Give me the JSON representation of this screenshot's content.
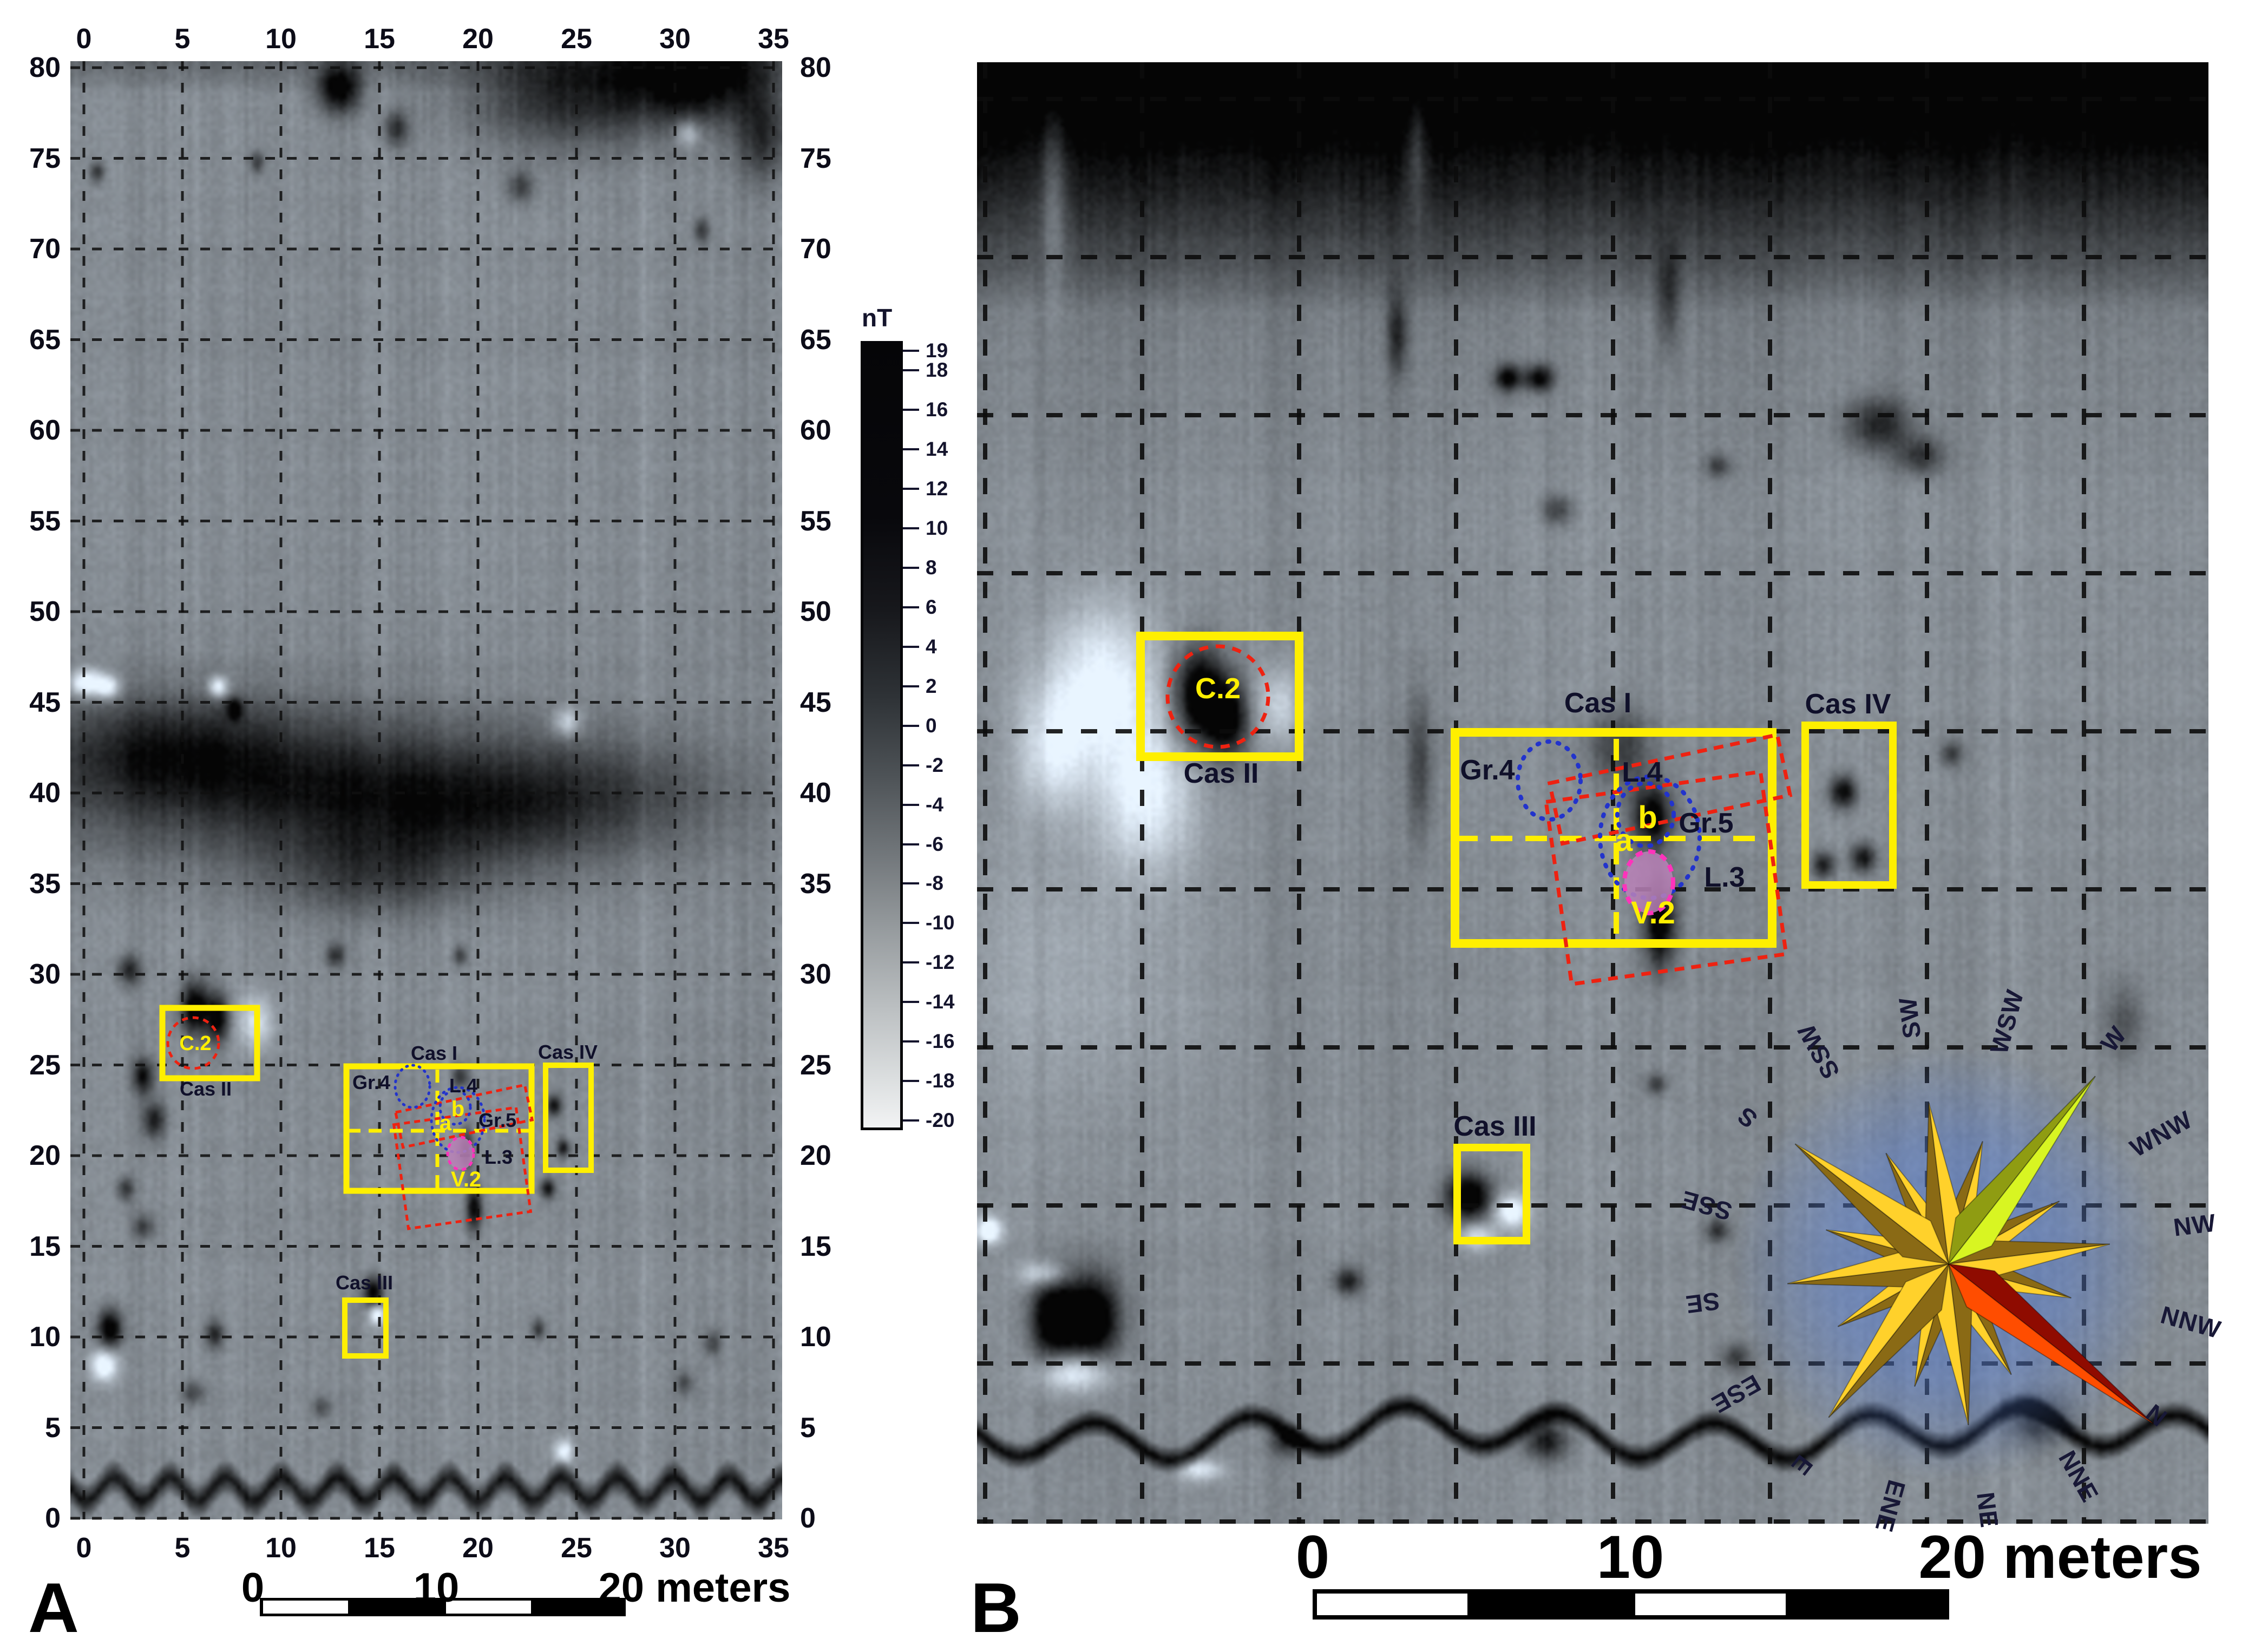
{
  "panel_a": {
    "label": "A",
    "x_ticks": [
      "0",
      "5",
      "10",
      "15",
      "20",
      "25",
      "30",
      "35"
    ],
    "y_ticks": [
      "80",
      "75",
      "70",
      "65",
      "60",
      "55",
      "50",
      "45",
      "40",
      "35",
      "30",
      "25",
      "20",
      "15",
      "10",
      "5",
      "0"
    ],
    "scale_bar": {
      "start": "0",
      "mid": "10",
      "end": "20 meters"
    }
  },
  "panel_b": {
    "label": "B",
    "scale_bar": {
      "start": "0",
      "mid": "10",
      "end": "20 meters"
    },
    "compass": {
      "directions": [
        "N",
        "NNE",
        "NE",
        "ENE",
        "E",
        "ESE",
        "SE",
        "SSE",
        "S",
        "SSW",
        "SW",
        "WSW",
        "W",
        "WNW",
        "NW",
        "NNW"
      ]
    }
  },
  "colorbar": {
    "title": "nT",
    "tick_values": [
      "19",
      "18",
      "16",
      "14",
      "12",
      "10",
      "8",
      "6",
      "4",
      "2",
      "0",
      "-2",
      "-4",
      "-6",
      "-8",
      "-10",
      "-12",
      "-14",
      "-16",
      "-18",
      "-20"
    ]
  },
  "annotations": {
    "cas_i": "Cas I",
    "cas_ii": "Cas II",
    "cas_iii": "Cas III",
    "cas_iv": "Cas IV",
    "c2": "C.2",
    "gr4": "Gr.4",
    "gr5": "Gr.5",
    "l3": "L.3",
    "l4": "L.4",
    "v2": "V.2",
    "a": "a",
    "b": "b"
  },
  "colors": {
    "annotation_yellow": "#ffef00",
    "outline_red": "#ee2211",
    "outline_blue": "#2233cc",
    "outline_magenta": "#ff33bb",
    "label_dark": "#10102a",
    "compass_gold": "#ffd12b",
    "compass_red": "#ff4d00",
    "compass_green": "#d8f522"
  }
}
